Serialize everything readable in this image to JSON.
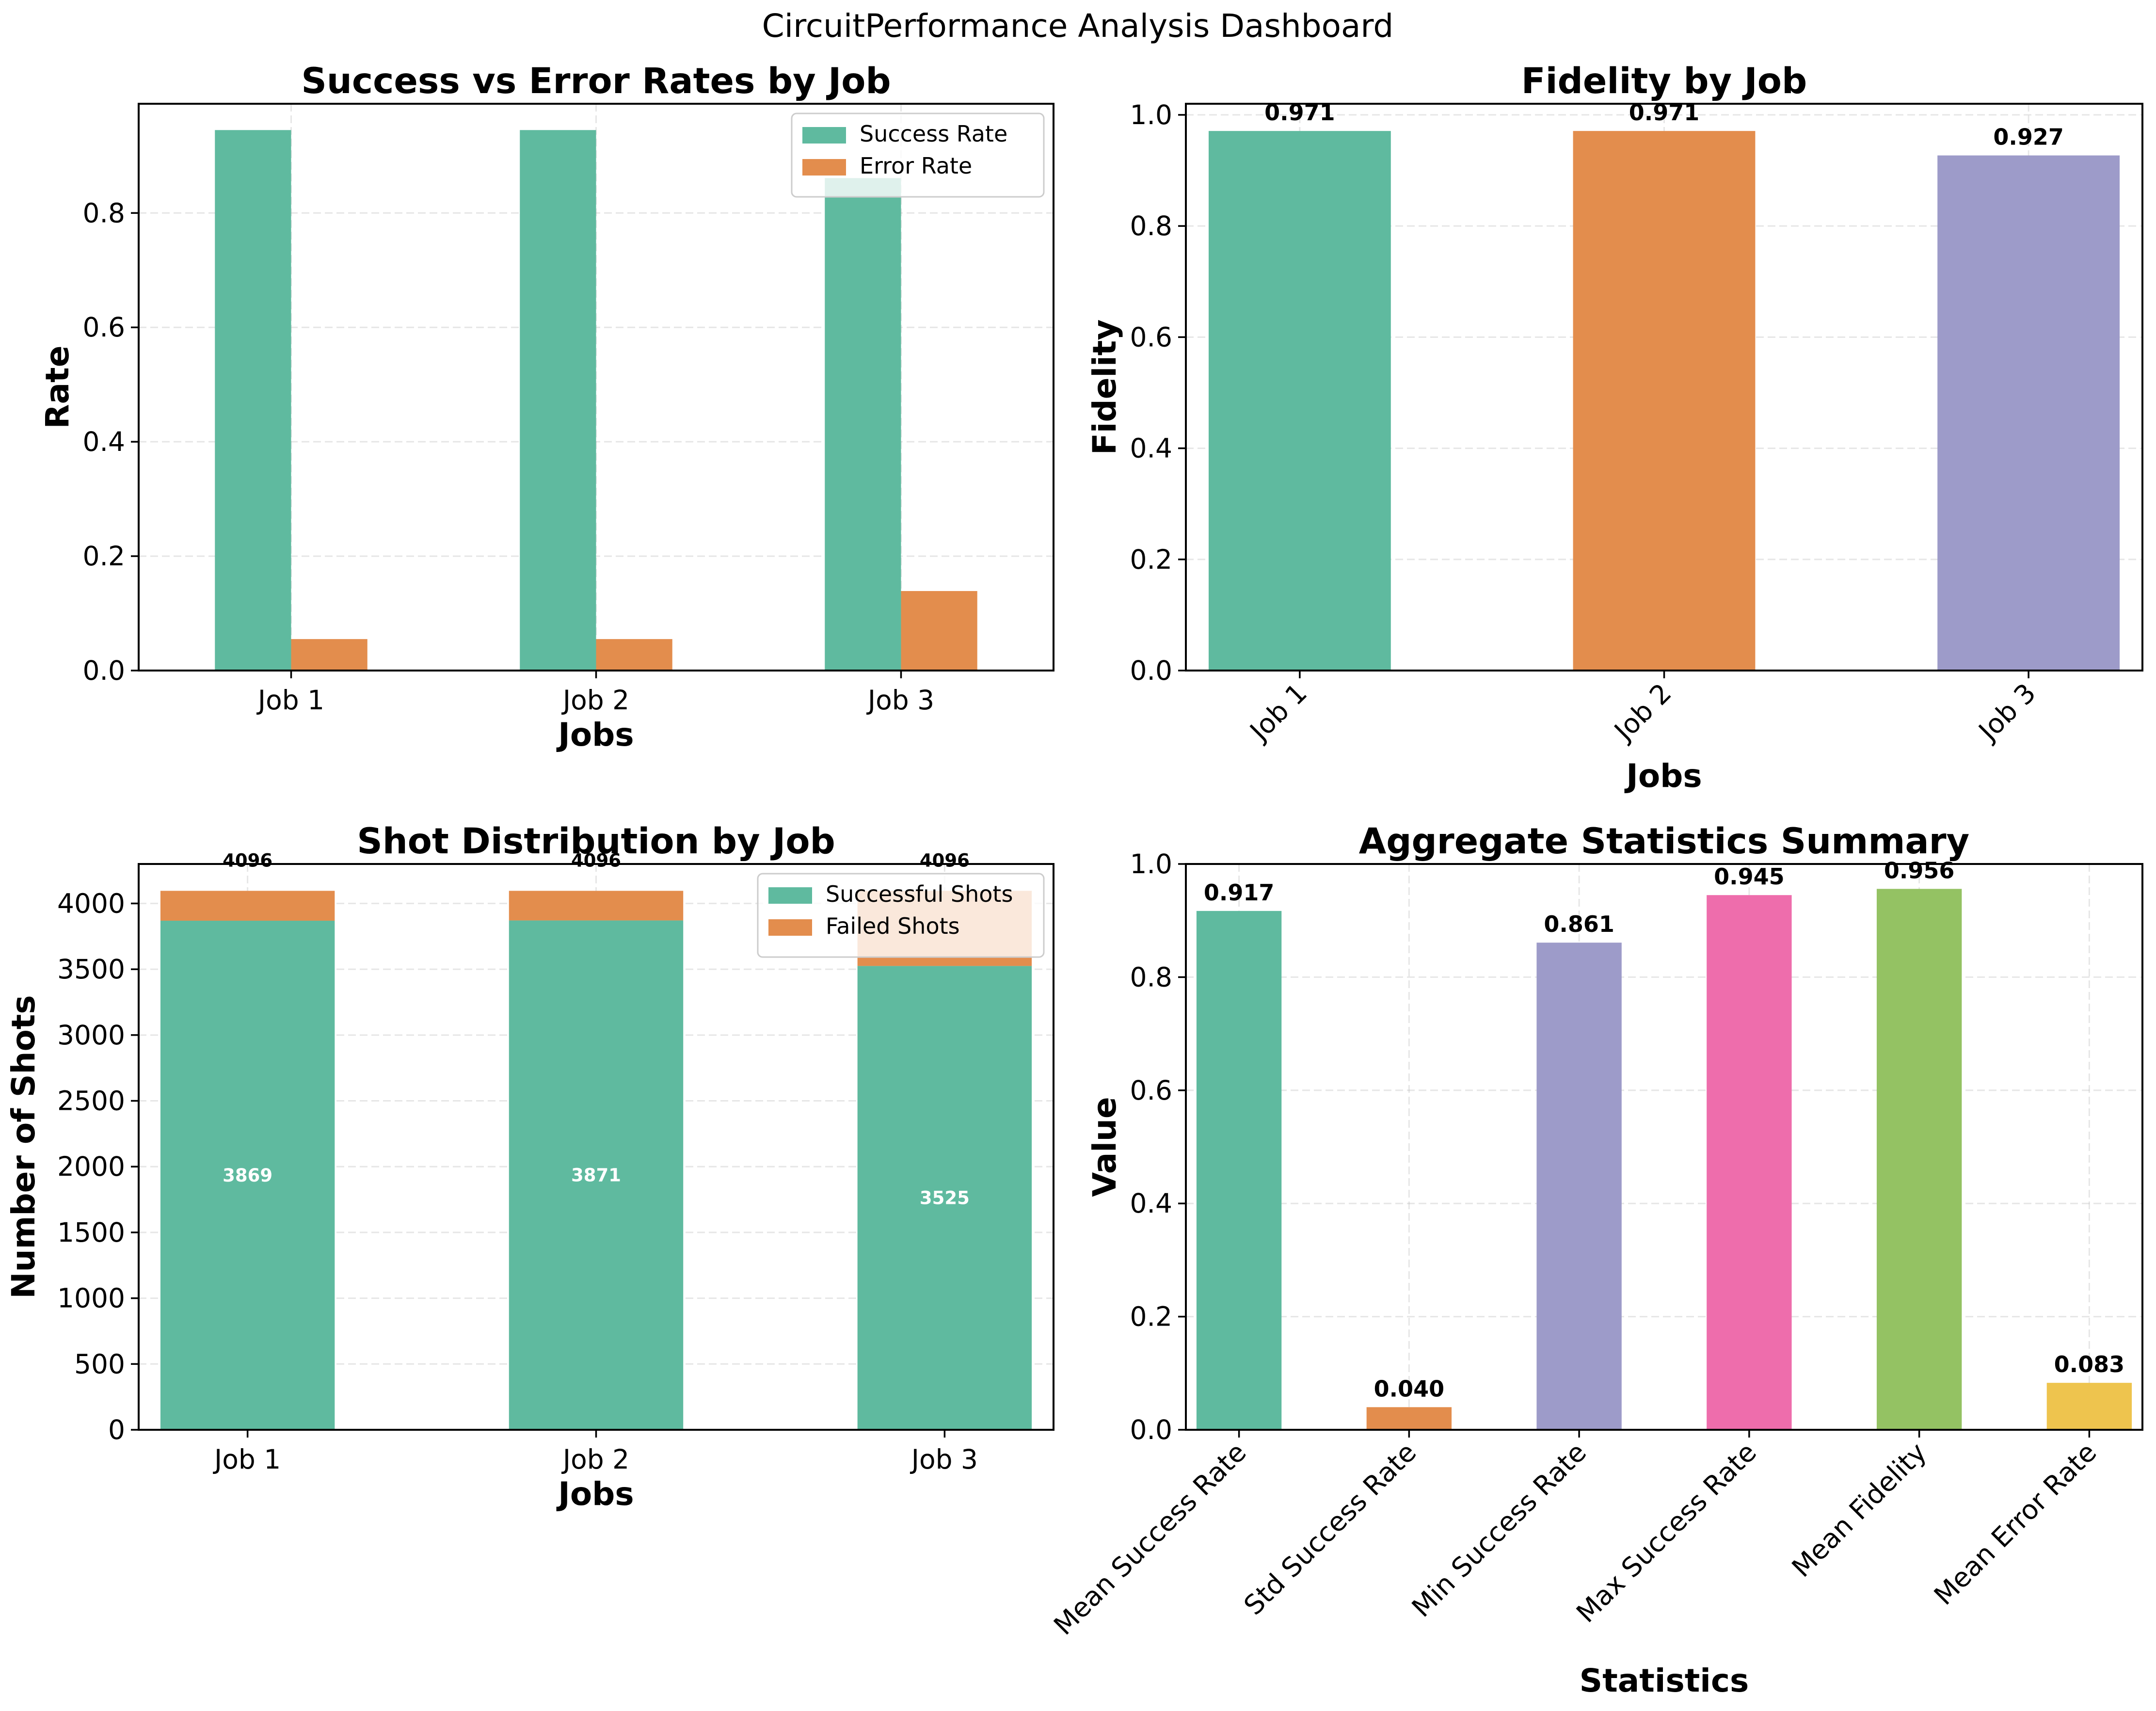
{
  "suptitle": "CircuitPerformance Analysis Dashboard",
  "colors": {
    "teal": "#5fba9f",
    "orange": "#e38d4d",
    "purple": "#9d9bc9",
    "pink": "#ee6dac",
    "green": "#94c263",
    "yellow": "#eec44e"
  },
  "chart_data": [
    {
      "id": "rates",
      "type": "bar",
      "title": "Success vs Error Rates by Job",
      "xlabel": "Jobs",
      "ylabel": "Rate",
      "categories": [
        "Job 1",
        "Job 2",
        "Job 3"
      ],
      "series": [
        {
          "name": "Success Rate",
          "values": [
            0.945,
            0.945,
            0.861
          ],
          "color": "#5fba9f"
        },
        {
          "name": "Error Rate",
          "values": [
            0.055,
            0.055,
            0.139
          ],
          "color": "#e38d4d"
        }
      ],
      "ylim": [
        0,
        0.991
      ],
      "yticks": [
        0.0,
        0.2,
        0.4,
        0.6,
        0.8
      ],
      "ytick_labels": [
        "0.0",
        "0.2",
        "0.4",
        "0.6",
        "0.8"
      ],
      "grid": true,
      "legend": "upper-right"
    },
    {
      "id": "fidelity",
      "type": "bar",
      "title": "Fidelity by Job",
      "xlabel": "Jobs",
      "ylabel": "Fidelity",
      "categories": [
        "Job 1",
        "Job 2",
        "Job 3"
      ],
      "values": [
        0.971,
        0.971,
        0.927
      ],
      "value_labels": [
        "0.971",
        "0.971",
        "0.927"
      ],
      "colors": [
        "#5fba9f",
        "#e38d4d",
        "#9d9bc9"
      ],
      "ylim": [
        0,
        1.02
      ],
      "yticks": [
        0.0,
        0.2,
        0.4,
        0.6,
        0.8,
        1.0
      ],
      "ytick_labels": [
        "0.0",
        "0.2",
        "0.4",
        "0.6",
        "0.8",
        "1.0"
      ],
      "xtick_rotation": 45,
      "grid": true
    },
    {
      "id": "shots",
      "type": "bar",
      "stacked": true,
      "title": "Shot Distribution by Job",
      "xlabel": "Jobs",
      "ylabel": "Number of Shots",
      "categories": [
        "Job 1",
        "Job 2",
        "Job 3"
      ],
      "series": [
        {
          "name": "Successful Shots",
          "values": [
            3869,
            3871,
            3525
          ],
          "labels": [
            "3869",
            "3871",
            "3525"
          ],
          "color": "#5fba9f"
        },
        {
          "name": "Failed Shots",
          "values": [
            227,
            225,
            571
          ],
          "color": "#e38d4d"
        }
      ],
      "totals": [
        4096,
        4096,
        4096
      ],
      "total_labels": [
        "4096",
        "4096",
        "4096"
      ],
      "ylim": [
        0,
        4300
      ],
      "yticks": [
        0,
        500,
        1000,
        1500,
        2000,
        2500,
        3000,
        3500,
        4000
      ],
      "ytick_labels": [
        "0",
        "500",
        "1000",
        "1500",
        "2000",
        "2500",
        "3000",
        "3500",
        "4000"
      ],
      "grid": true,
      "legend": "upper-right"
    },
    {
      "id": "aggregate",
      "type": "bar",
      "title": "Aggregate Statistics Summary",
      "xlabel": "Statistics",
      "ylabel": "Value",
      "categories": [
        "Mean Success Rate",
        "Std Success Rate",
        "Min Success Rate",
        "Max Success Rate",
        "Mean Fidelity",
        "Mean Error Rate"
      ],
      "values": [
        0.917,
        0.04,
        0.861,
        0.945,
        0.956,
        0.083
      ],
      "value_labels": [
        "0.917",
        "0.040",
        "0.861",
        "0.945",
        "0.956",
        "0.083"
      ],
      "colors": [
        "#5fba9f",
        "#e38d4d",
        "#9d9bc9",
        "#ee6dac",
        "#94c263",
        "#eec44e"
      ],
      "ylim": [
        0,
        1.0
      ],
      "yticks": [
        0.0,
        0.2,
        0.4,
        0.6,
        0.8,
        1.0
      ],
      "ytick_labels": [
        "0.0",
        "0.2",
        "0.4",
        "0.6",
        "0.8",
        "1.0"
      ],
      "xtick_rotation": 45,
      "grid": true
    }
  ]
}
